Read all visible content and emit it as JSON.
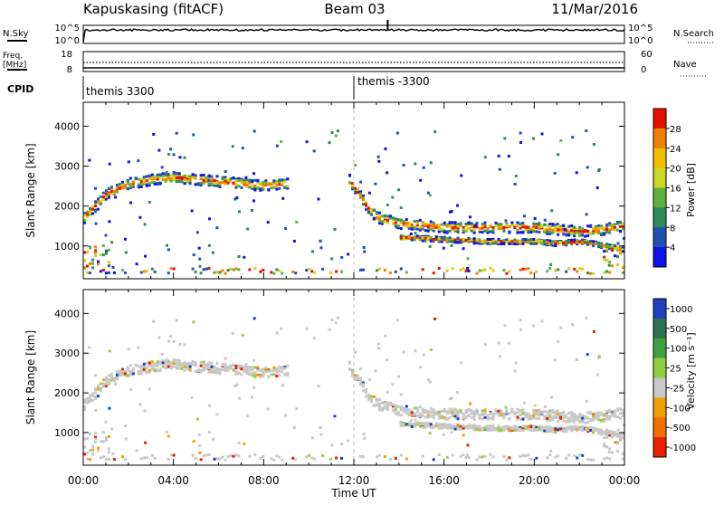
{
  "header": {
    "station": "Kapuskasing (fitACF)",
    "beam": "Beam 03",
    "date": "11/Mar/2016"
  },
  "top_panels": {
    "nsky_label": "N.Sky",
    "nsky_ticks": [
      "10^5",
      "10^0"
    ],
    "nsearch_label": "N.Search",
    "nsearch_ticks": [
      "10^5",
      "10^0"
    ],
    "freq_label": "Freq.",
    "freq_unit": "[MHz]",
    "freq_ticks": [
      "18",
      "8"
    ],
    "nave_label": "Nave",
    "nave_ticks": [
      "60",
      "0"
    ],
    "cpid_label": "CPID",
    "cpid_segments": [
      {
        "label": "themis 3300",
        "start_h": 0
      },
      {
        "label": "themis -3300",
        "start_h": 12
      }
    ]
  },
  "chart_data": [
    {
      "type": "heatmap",
      "name": "power",
      "ylabel": "Slant Range [km]",
      "xlabel": "Time UT",
      "xlim": [
        0,
        24
      ],
      "ylim": [
        180,
        4600
      ],
      "x_ticks": [
        "00:00",
        "04:00",
        "08:00",
        "12:00",
        "16:00",
        "20:00",
        "00:00"
      ],
      "y_ticks": [
        1000,
        2000,
        3000,
        4000
      ],
      "colorbar": {
        "label": "Power [dB]",
        "ticks": [
          "4",
          "8",
          "12",
          "16",
          "20",
          "24",
          "28"
        ],
        "colors": [
          "#1010e8",
          "#2050b0",
          "#2e8b57",
          "#60b040",
          "#c8d820",
          "#f0c000",
          "#f08000",
          "#e81000"
        ]
      },
      "bands": [
        {
          "name": "ionospheric band morning",
          "x": [
            0,
            1,
            2,
            3,
            4,
            5,
            6,
            7,
            8,
            9
          ],
          "y": [
            1700,
            2300,
            2550,
            2650,
            2700,
            2650,
            2600,
            2550,
            2500,
            2550
          ]
        },
        {
          "name": "ionospheric band evening",
          "x": [
            11.7,
            12.5,
            13,
            14,
            15,
            16,
            17,
            18,
            19,
            20,
            21,
            22,
            23,
            24
          ],
          "y": [
            2700,
            2000,
            1700,
            1550,
            1500,
            1450,
            1450,
            1450,
            1450,
            1450,
            1400,
            1350,
            1400,
            1500
          ]
        },
        {
          "name": "lower band evening",
          "x": [
            14,
            16,
            18,
            20,
            21,
            22,
            23,
            24
          ],
          "y": [
            1200,
            1150,
            1100,
            1100,
            1050,
            1100,
            1000,
            900
          ]
        }
      ]
    },
    {
      "type": "heatmap",
      "name": "velocity",
      "ylabel": "Slant Range [km]",
      "xlabel": "Time UT",
      "xlim": [
        0,
        24
      ],
      "ylim": [
        180,
        4600
      ],
      "x_ticks": [
        "00:00",
        "04:00",
        "08:00",
        "12:00",
        "16:00",
        "20:00",
        "00:00"
      ],
      "y_ticks": [
        1000,
        2000,
        3000,
        4000
      ],
      "colorbar": {
        "label": "Velocity [m s⁻¹]",
        "ticks": [
          "1000",
          "500",
          "100",
          "25",
          "-25",
          "-100",
          "-500",
          "-1000"
        ],
        "colors": [
          "#2040c0",
          "#2e7050",
          "#40a040",
          "#90d040",
          "#c8c8c8",
          "#f0a000",
          "#f07000",
          "#e82000"
        ]
      }
    }
  ]
}
